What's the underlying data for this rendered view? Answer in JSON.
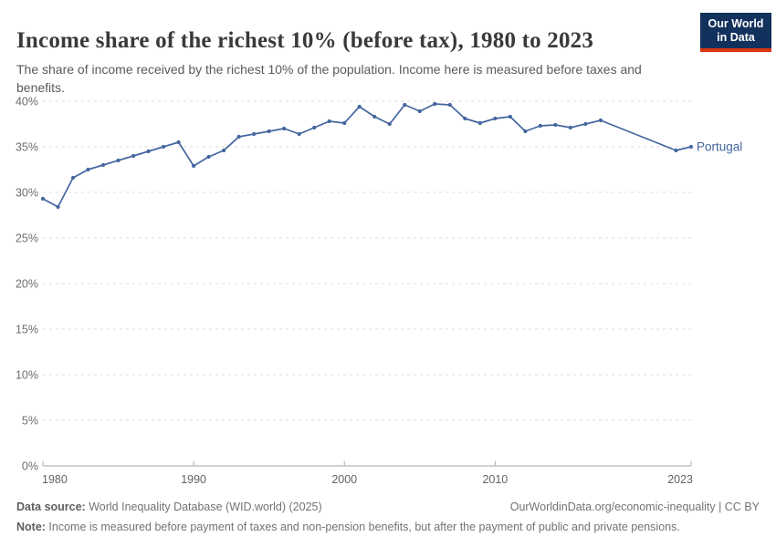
{
  "header": {
    "title": "Income share of the richest 10% (before tax), 1980 to 2023",
    "subtitle": "The share of income received by the richest 10% of the population. Income here is measured before taxes and benefits.",
    "logo": {
      "line1": "Our World",
      "line2": "in Data"
    }
  },
  "chart_data": {
    "type": "line",
    "title": "Income share of the richest 10% (before tax), 1980 to 2023",
    "entity": "Portugal",
    "unit": "%",
    "xlim": [
      1980,
      2023
    ],
    "ylim": [
      0,
      40
    ],
    "x_ticks": [
      1980,
      1990,
      2000,
      2010,
      2023
    ],
    "y_ticks": [
      0,
      5,
      10,
      15,
      20,
      25,
      30,
      35,
      40
    ],
    "grid": "horizontal-dashed",
    "legend_position": "end-of-line",
    "series": [
      {
        "name": "Portugal",
        "color": "#44669f",
        "x": [
          1980,
          1981,
          1982,
          1983,
          1984,
          1985,
          1986,
          1987,
          1988,
          1989,
          1990,
          1991,
          1992,
          1993,
          1994,
          1995,
          1996,
          1997,
          1998,
          1999,
          2000,
          2001,
          2002,
          2003,
          2004,
          2005,
          2006,
          2007,
          2008,
          2009,
          2010,
          2011,
          2012,
          2013,
          2014,
          2015,
          2016,
          2017,
          2022,
          2023
        ],
        "values": [
          29.3,
          28.4,
          31.6,
          32.5,
          33.0,
          33.5,
          34.0,
          34.5,
          35.0,
          35.5,
          32.9,
          33.9,
          34.6,
          36.1,
          36.4,
          36.7,
          37.0,
          36.4,
          37.1,
          37.8,
          37.6,
          39.4,
          38.3,
          37.5,
          39.6,
          38.9,
          39.7,
          39.6,
          38.1,
          37.6,
          38.1,
          38.3,
          36.7,
          37.3,
          37.4,
          37.1,
          37.5,
          37.9,
          34.6,
          35.0
        ]
      }
    ]
  },
  "footer": {
    "datasource_label": "Data source:",
    "datasource_text": " World Inequality Database (WID.world) (2025)",
    "credit": "OurWorldinData.org/economic-inequality | CC BY",
    "note_label": "Note:",
    "note_text": " Income is measured before payment of taxes and non-pension benefits, but after the payment of public and private pensions."
  },
  "colors": {
    "line": "#44669f",
    "grid": "#dcdcdc",
    "axis": "#a3a3a3",
    "tick": "#b0b0b0",
    "tick_text": "#6e6e6e",
    "logo_bg": "#12315c",
    "logo_stripe": "#dc3514"
  }
}
